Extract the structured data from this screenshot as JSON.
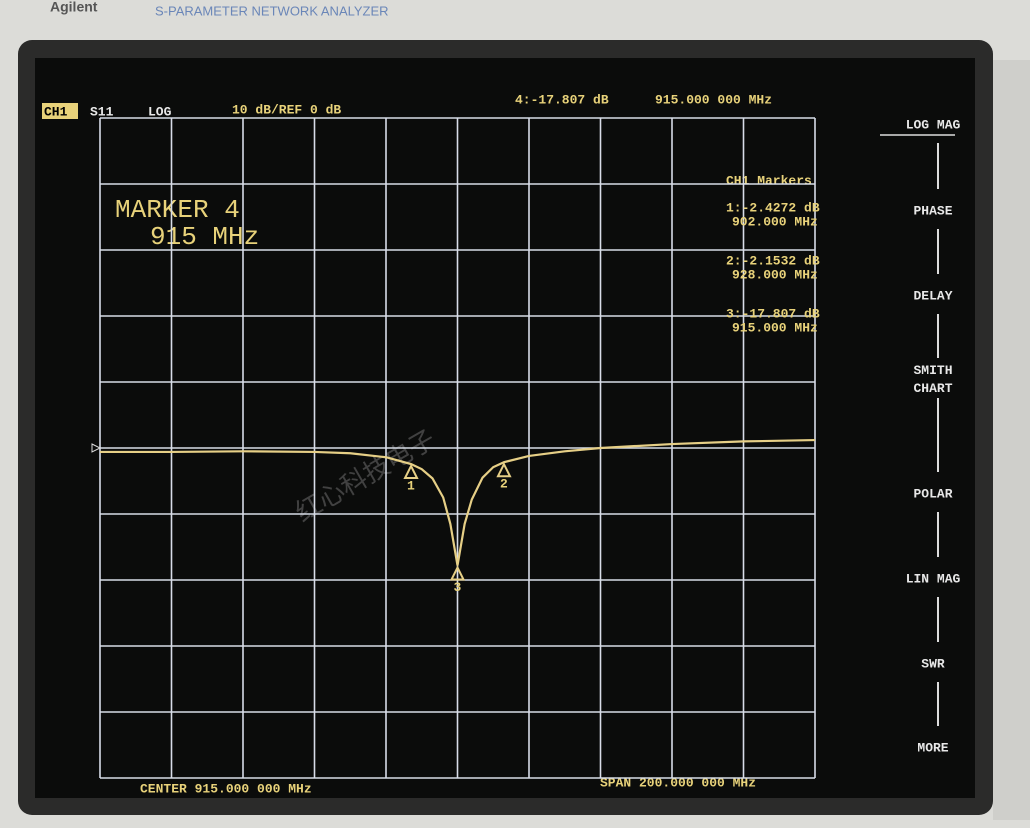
{
  "brand": {
    "maker": "Agilent",
    "model": "S-PARAMETER NETWORK ANALYZER"
  },
  "header": {
    "channel": "CH1",
    "param": "S11",
    "format": "LOG",
    "scale": "10 dB/REF 0 dB",
    "active_marker": "4:-17.807 dB",
    "active_freq": "915.000 000 MHz"
  },
  "marker_box": {
    "line1": "MARKER 4",
    "line2": "915 MHz"
  },
  "marker_table": {
    "title": "CH1 Markers",
    "rows": [
      [
        "1:-2.4272 dB",
        "902.000 MHz"
      ],
      [
        "2:-2.1532 dB",
        "928.000 MHz"
      ],
      [
        "3:-17.807 dB",
        "915.000 MHz"
      ]
    ]
  },
  "markers": [
    {
      "label": "1",
      "x": 902,
      "value": -2.4272
    },
    {
      "label": "2",
      "x": 928,
      "value": -2.1532
    },
    {
      "label": "3",
      "x": 915,
      "value": -17.807
    }
  ],
  "softkeys": [
    "LOG MAG",
    "PHASE",
    "DELAY",
    "SMITH CHART",
    "POLAR",
    "LIN MAG",
    "SWR",
    "MORE"
  ],
  "footer": {
    "center": "CENTER 915.000 000 MHz",
    "span": "SPAN 200.000 000 MHz"
  },
  "watermark": "红心科技电子",
  "chart_data": {
    "type": "line",
    "color": "#e6cf86",
    "x": [
      815,
      835,
      855,
      875,
      885,
      895,
      902,
      905,
      908,
      911,
      913,
      915,
      917,
      919,
      922,
      925,
      928,
      935,
      945,
      955,
      975,
      995,
      1015
    ],
    "values": [
      -0.6,
      -0.6,
      -0.5,
      -0.6,
      -0.8,
      -1.4,
      -2.43,
      -3.2,
      -4.6,
      -7.5,
      -11.5,
      -17.8,
      -11.5,
      -7.8,
      -4.5,
      -2.9,
      -2.15,
      -1.2,
      -0.5,
      0,
      0.6,
      1.0,
      1.2
    ],
    "xlim": [
      815,
      1015
    ],
    "ylim": [
      -50,
      50
    ]
  }
}
